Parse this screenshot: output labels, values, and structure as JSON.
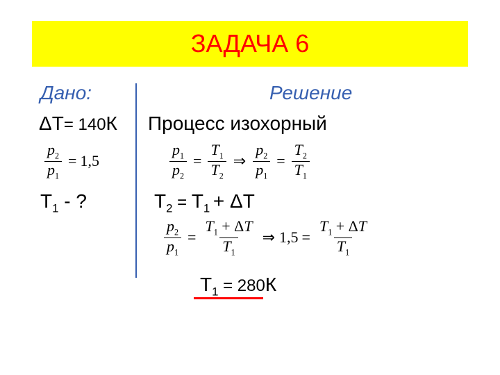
{
  "colors": {
    "header_bg": "#ffff00",
    "header_text": "#ff0000",
    "given_label": "#365fb0",
    "solution_label": "#365fb0",
    "body_text": "#000000",
    "divider": "#365fb0",
    "underline": "#ff0000"
  },
  "typography": {
    "header_fontsize": 36,
    "label_fontsize": 28,
    "body_fontsize": 28,
    "math_fontsize": 22
  },
  "header": {
    "title": "ЗАДАЧА  6"
  },
  "given": {
    "label": "Дано:",
    "delta_t_prefix": "ΔТ",
    "delta_t_eq": "= 140",
    "delta_t_unit": "К",
    "ratio": {
      "num_sym": "p",
      "num_sub": "2",
      "den_sym": "p",
      "den_sub": "1",
      "eq": "=",
      "val": "1,5"
    },
    "question_sym": "Т",
    "question_sub": "1",
    "question_rest": " - ?"
  },
  "solution": {
    "label": "Решение",
    "process": "Процесс  изохорный",
    "eq1": {
      "f1_num_sym": "p",
      "f1_num_sub": "1",
      "f1_den_sym": "p",
      "f1_den_sub": "2",
      "eq1": "=",
      "f2_num_sym": "T",
      "f2_num_sub": "1",
      "f2_den_sym": "T",
      "f2_den_sub": "2",
      "arrow": "⇒",
      "f3_num_sym": "p",
      "f3_num_sub": "2",
      "f3_den_sym": "p",
      "f3_den_sub": "1",
      "eq2": "=",
      "f4_num_sym": "T",
      "f4_num_sub": "2",
      "f4_den_sym": "T",
      "f4_den_sub": "1"
    },
    "t2_lhs_sym": "Т",
    "t2_lhs_sub": "2",
    "t2_eq": " = ",
    "t2_rhs1_sym": "Т",
    "t2_rhs1_sub": "1 ",
    "t2_rhs2": "+ ΔТ",
    "eq2": {
      "f1_num_sym": "p",
      "f1_num_sub": "2",
      "f1_den_sym": "p",
      "f1_den_sub": "1",
      "eq1": "=",
      "f2_num_a": "T",
      "f2_num_asub": "1",
      "f2_num_plus": " + Δ",
      "f2_num_b": "T",
      "f2_den_sym": "T",
      "f2_den_sub": "1",
      "arrow": "⇒",
      "mid_val": "1,5",
      "eq2": "=",
      "f3_num_a": "T",
      "f3_num_asub": "1",
      "f3_num_plus": " + Δ",
      "f3_num_b": "T",
      "f3_den_sym": "T",
      "f3_den_sub": "1"
    },
    "answer_sym": "Т",
    "answer_sub": "1",
    "answer_eq": " = 280",
    "answer_unit": "К"
  }
}
